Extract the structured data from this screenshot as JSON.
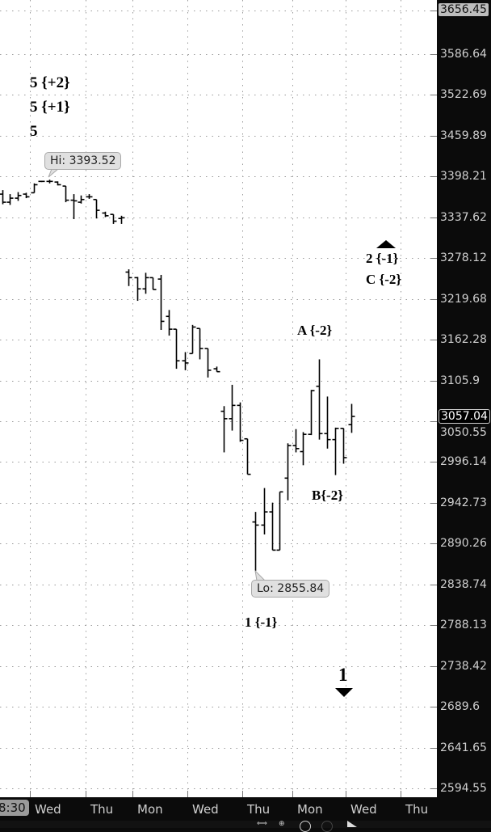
{
  "chart_data": {
    "type": "ohlc",
    "y_scale": "log",
    "ylim": [
      2594.55,
      3656.45
    ],
    "y_ticks": [
      "3586.64",
      "3522.69",
      "3459.89",
      "3398.21",
      "3337.62",
      "3278.12",
      "3219.68",
      "3162.28",
      "3105.9",
      "3050.55",
      "2996.14",
      "2942.73",
      "2890.26",
      "2838.74",
      "2788.13",
      "2738.42",
      "2689.6",
      "2641.65",
      "2594.55"
    ],
    "y_tick_values": [
      3586.64,
      3522.69,
      3459.89,
      3398.21,
      3337.62,
      3278.12,
      3219.68,
      3162.28,
      3105.9,
      3050.55,
      2996.14,
      2942.73,
      2890.26,
      2838.74,
      2788.13,
      2738.42,
      2689.6,
      2641.65,
      2594.55
    ],
    "top_price_label": "3656.45",
    "last_price_label": "3057.04",
    "last_price": 3057.04,
    "x_time_label": "8:30",
    "x_ticks": [
      "Wed",
      "Thu",
      "Mon",
      "Wed",
      "Thu",
      "Mon",
      "Wed",
      "Thu"
    ],
    "grid": true,
    "bars": [
      [
        3372,
        3378,
        3357,
        3360
      ],
      [
        3360,
        3372,
        3356,
        3366
      ],
      [
        3366,
        3375,
        3362,
        3370
      ],
      [
        3372,
        3374,
        3366,
        3368
      ],
      [
        3374,
        3388,
        3374,
        3386
      ],
      [
        3391,
        3392,
        3390,
        3391
      ],
      [
        3391,
        3393.52,
        3388,
        3391
      ],
      [
        3390,
        3391,
        3385,
        3386
      ],
      [
        3384,
        3384,
        3360,
        3363
      ],
      [
        3363,
        3372,
        3335,
        3362
      ],
      [
        3360,
        3370,
        3358,
        3364
      ],
      [
        3368,
        3372,
        3365,
        3368
      ],
      [
        3364,
        3364,
        3336,
        3348
      ],
      [
        3344,
        3346,
        3338,
        3340
      ],
      [
        3342,
        3342,
        3328,
        3332
      ],
      [
        3336,
        3340,
        3328,
        3337
      ],
      [
        3258,
        3262,
        3238,
        3250
      ],
      [
        3250,
        3251,
        3217,
        3234
      ],
      [
        3234,
        3257,
        3227,
        3250
      ],
      [
        3250,
        3250,
        3233,
        3233
      ],
      [
        3248,
        3254,
        3176,
        3188
      ],
      [
        3195,
        3204,
        3168,
        3177
      ],
      [
        3177,
        3177,
        3122,
        3133
      ],
      [
        3133,
        3145,
        3120,
        3130
      ],
      [
        3143,
        3183,
        3143,
        3180
      ],
      [
        3178,
        3178,
        3135,
        3150
      ],
      [
        3150,
        3150,
        3110,
        3120
      ],
      [
        3122,
        3125,
        3118,
        3118
      ],
      [
        3064,
        3071,
        3009,
        3054
      ],
      [
        3054,
        3100,
        3038,
        3072
      ],
      [
        3072,
        3076,
        3023,
        3025
      ],
      [
        3027,
        3027,
        2980,
        2980
      ],
      [
        2918,
        2931,
        2855.84,
        2914
      ],
      [
        2914,
        2962,
        2902,
        2931
      ],
      [
        2931,
        2943,
        2882,
        2882
      ],
      [
        2882,
        2957,
        2882,
        2957
      ],
      [
        2975,
        3021,
        2946,
        3018
      ],
      [
        3018,
        3040,
        3009,
        3014
      ],
      [
        3010,
        3036,
        2992,
        3033
      ],
      [
        3033,
        3093,
        3032,
        3092
      ],
      [
        3098,
        3135,
        3026,
        3034
      ],
      [
        3034,
        3084,
        3014,
        3026
      ],
      [
        3026,
        3042,
        2979,
        3041
      ],
      [
        3041,
        3041,
        2994,
        3002
      ],
      [
        3046,
        3074,
        3035,
        3057.04
      ]
    ],
    "hi_label": "Hi: 3393.52",
    "lo_label": "Lo: 2855.84",
    "annotations": {
      "w5a": "5 {+2}",
      "w5b": "5 {+1}",
      "w5c": "5",
      "w2": "2 {-1}",
      "wC": "C {-2}",
      "wA": "A {-2}",
      "wB": "B{-2}",
      "w1a": "1 {-1}",
      "w1b": "1"
    },
    "colors": {
      "bar": "#000000",
      "background": "#ffffff",
      "axis": "#0b0b0b",
      "grid": "#9a9a9a"
    }
  }
}
